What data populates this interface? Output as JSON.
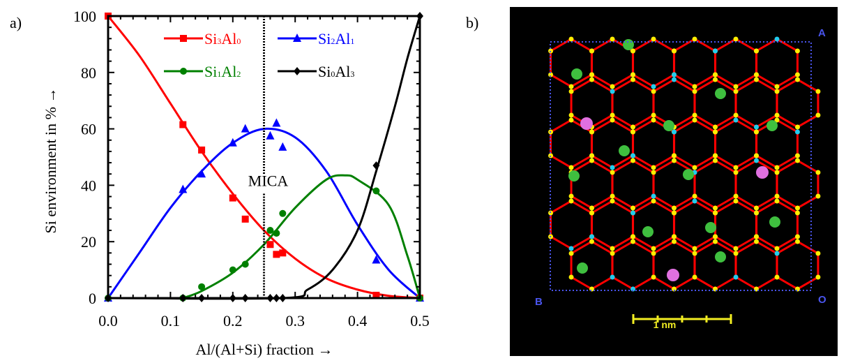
{
  "panels": {
    "a": "a)",
    "b": "b)"
  },
  "chart_data": {
    "type": "scatter",
    "xlabel": "Al/(Al+Si) fraction  →",
    "ylabel": "Si environment in %   →",
    "xlim": [
      0,
      0.5
    ],
    "ylim": [
      0,
      100
    ],
    "xticks": [
      "0.0",
      "0.1",
      "0.2",
      "0.3",
      "0.4",
      "0.5"
    ],
    "yticks": [
      "0",
      "20",
      "40",
      "60",
      "80",
      "100"
    ],
    "grid": false,
    "legend": "top",
    "annotation": {
      "text": "MICA",
      "x": 0.25
    },
    "vertical_line_x": 0.25,
    "series": [
      {
        "name": "Si3Al0",
        "label": {
          "a": "Si",
          "as": "3",
          "b": "Al",
          "bs": "0"
        },
        "color": "#ff0000",
        "marker": "square",
        "points": [
          [
            0,
            100
          ],
          [
            0.12,
            61.5
          ],
          [
            0.15,
            52.5
          ],
          [
            0.2,
            35.5
          ],
          [
            0.22,
            28
          ],
          [
            0.26,
            19
          ],
          [
            0.27,
            15.5
          ],
          [
            0.28,
            16
          ],
          [
            0.43,
            1
          ],
          [
            0.5,
            0
          ]
        ],
        "curve": [
          [
            0,
            100
          ],
          [
            0.05,
            86
          ],
          [
            0.1,
            69
          ],
          [
            0.15,
            52
          ],
          [
            0.2,
            37
          ],
          [
            0.25,
            24
          ],
          [
            0.3,
            14
          ],
          [
            0.35,
            7
          ],
          [
            0.4,
            3
          ],
          [
            0.45,
            0.8
          ],
          [
            0.5,
            0
          ]
        ]
      },
      {
        "name": "Si2Al1",
        "label": {
          "a": "Si",
          "as": "2",
          "b": "Al",
          "bs": "1"
        },
        "color": "#0000ff",
        "marker": "triangle",
        "points": [
          [
            0,
            0
          ],
          [
            0.12,
            38.5
          ],
          [
            0.15,
            44
          ],
          [
            0.2,
            55
          ],
          [
            0.22,
            60
          ],
          [
            0.26,
            57.5
          ],
          [
            0.27,
            62
          ],
          [
            0.28,
            53.5
          ],
          [
            0.43,
            13.5
          ],
          [
            0.5,
            0
          ]
        ],
        "curve": [
          [
            0,
            0
          ],
          [
            0.05,
            16
          ],
          [
            0.1,
            32
          ],
          [
            0.15,
            45
          ],
          [
            0.2,
            55
          ],
          [
            0.25,
            60
          ],
          [
            0.3,
            57
          ],
          [
            0.35,
            45
          ],
          [
            0.4,
            26
          ],
          [
            0.45,
            10
          ],
          [
            0.5,
            0
          ]
        ]
      },
      {
        "name": "Si1Al2",
        "label": {
          "a": "Si",
          "as": "1",
          "b": "Al",
          "bs": "2"
        },
        "color": "#008000",
        "marker": "circle",
        "points": [
          [
            0,
            0
          ],
          [
            0.12,
            0
          ],
          [
            0.15,
            4
          ],
          [
            0.2,
            10
          ],
          [
            0.22,
            12
          ],
          [
            0.26,
            24
          ],
          [
            0.27,
            23
          ],
          [
            0.28,
            30
          ],
          [
            0.43,
            38
          ],
          [
            0.5,
            0
          ]
        ],
        "curve": [
          [
            0.12,
            0
          ],
          [
            0.15,
            2.5
          ],
          [
            0.2,
            9
          ],
          [
            0.25,
            19
          ],
          [
            0.3,
            32
          ],
          [
            0.35,
            42
          ],
          [
            0.38,
            43.5
          ],
          [
            0.4,
            42
          ],
          [
            0.45,
            33
          ],
          [
            0.48,
            15
          ],
          [
            0.5,
            0
          ]
        ]
      },
      {
        "name": "Si0Al3",
        "label": {
          "a": "Si",
          "as": "0",
          "b": "Al",
          "bs": "3"
        },
        "color": "#000000",
        "marker": "diamond",
        "points": [
          [
            0,
            0
          ],
          [
            0.12,
            0
          ],
          [
            0.15,
            0
          ],
          [
            0.2,
            0
          ],
          [
            0.22,
            0
          ],
          [
            0.26,
            0
          ],
          [
            0.27,
            0
          ],
          [
            0.28,
            0
          ],
          [
            0.43,
            47
          ],
          [
            0.5,
            100
          ]
        ],
        "curve": [
          [
            0,
            0
          ],
          [
            0.28,
            0
          ],
          [
            0.32,
            3
          ],
          [
            0.36,
            10
          ],
          [
            0.4,
            24
          ],
          [
            0.43,
            45
          ],
          [
            0.46,
            68
          ],
          [
            0.48,
            85
          ],
          [
            0.5,
            100
          ]
        ]
      }
    ]
  },
  "panel_b": {
    "corner_labels": {
      "A": "A",
      "B": "B",
      "O": "O"
    },
    "scale_label": "1 nm",
    "colors": {
      "background": "#000000",
      "cell_border": "#4a55ee",
      "bonds": "#ff0000",
      "si": "#ffee00",
      "al": "#22ccee",
      "green_atoms": "#3fbf3f",
      "pink_atoms": "#e070e0"
    }
  }
}
